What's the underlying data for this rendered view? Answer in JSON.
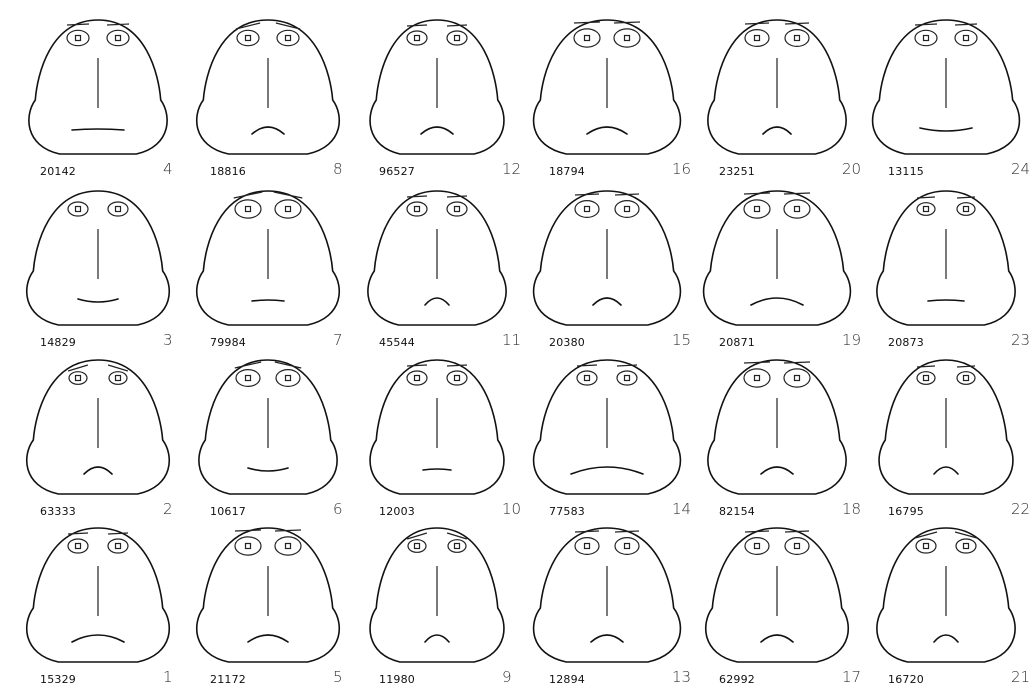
{
  "faces": [
    {
      "code": "20142",
      "num": "4",
      "mouth": "flat",
      "brows": "straight"
    },
    {
      "code": "18816",
      "num": "8",
      "mouth": "frown",
      "brows": "angled"
    },
    {
      "code": "96527",
      "num": "12",
      "mouth": "frown",
      "brows": "straight"
    },
    {
      "code": "18794",
      "num": "16",
      "mouth": "frown",
      "brows": "straight"
    },
    {
      "code": "23251",
      "num": "20",
      "mouth": "frown",
      "brows": "straight"
    },
    {
      "code": "13115",
      "num": "24",
      "mouth": "smile",
      "brows": "straight"
    },
    {
      "code": "14829",
      "num": "3",
      "mouth": "smile",
      "brows": "none"
    },
    {
      "code": "79984",
      "num": "7",
      "mouth": "flat",
      "brows": "angled"
    },
    {
      "code": "45544",
      "num": "11",
      "mouth": "frown",
      "brows": "straight"
    },
    {
      "code": "20380",
      "num": "15",
      "mouth": "frown",
      "brows": "straight"
    },
    {
      "code": "20871",
      "num": "19",
      "mouth": "frown",
      "brows": "straight"
    },
    {
      "code": "20873",
      "num": "23",
      "mouth": "flat",
      "brows": "straight"
    },
    {
      "code": "63333",
      "num": "2",
      "mouth": "frown",
      "brows": "angled"
    },
    {
      "code": "10617",
      "num": "6",
      "mouth": "smile",
      "brows": "angled"
    },
    {
      "code": "12003",
      "num": "10",
      "mouth": "flat",
      "brows": "straight"
    },
    {
      "code": "77583",
      "num": "14",
      "mouth": "frown",
      "brows": "straight"
    },
    {
      "code": "82154",
      "num": "18",
      "mouth": "frown",
      "brows": "straight"
    },
    {
      "code": "16795",
      "num": "22",
      "mouth": "frown",
      "brows": "straight"
    },
    {
      "code": "15329",
      "num": "1",
      "mouth": "frown",
      "brows": "straight"
    },
    {
      "code": "21172",
      "num": "5",
      "mouth": "frown",
      "brows": "straight"
    },
    {
      "code": "11980",
      "num": "9",
      "mouth": "frown",
      "brows": "angled"
    },
    {
      "code": "12894",
      "num": "13",
      "mouth": "frown",
      "brows": "straight"
    },
    {
      "code": "62992",
      "num": "17",
      "mouth": "frown",
      "brows": "straight"
    },
    {
      "code": "16720",
      "num": "21",
      "mouth": "frown",
      "brows": "angled"
    }
  ]
}
